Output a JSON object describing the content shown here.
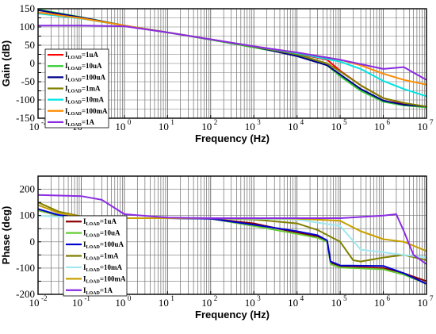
{
  "chart_data": [
    {
      "type": "line",
      "xlabel": "Frequency (Hz)",
      "ylabel": "Gain (dB)",
      "xscale": "log",
      "xlim": [
        0.01,
        10000000
      ],
      "ylim": [
        -150,
        150
      ],
      "x_ticks": [
        0.01,
        0.1,
        1,
        10,
        100,
        1000,
        10000,
        100000,
        1000000,
        10000000
      ],
      "x_tick_labels": [
        [
          "10",
          "-2"
        ],
        [
          "10",
          "-1"
        ],
        [
          "10",
          "0"
        ],
        [
          "10",
          "1"
        ],
        [
          "10",
          "2"
        ],
        [
          "10",
          "3"
        ],
        [
          "10",
          "4"
        ],
        [
          "10",
          "5"
        ],
        [
          "10",
          "6"
        ],
        [
          "10",
          "7"
        ]
      ],
      "y_ticks": [
        150,
        125,
        100,
        75,
        50,
        25,
        0,
        -25,
        -50,
        -75,
        -100,
        -125,
        -150
      ],
      "y_tick_labels": [
        "150",
        "",
        "100",
        "",
        "50",
        "",
        "0",
        "",
        "-50",
        "",
        "-100",
        "",
        "-150"
      ],
      "grid": true,
      "legend_position": "middle-left",
      "legend": [
        {
          "prefix": "I",
          "sub": "LOAD",
          "suffix": "=1uA",
          "color": "#ff0000"
        },
        {
          "prefix": "I",
          "sub": "LOAD",
          "suffix": "=10uA",
          "color": "#33cc33"
        },
        {
          "prefix": "I",
          "sub": "LOAD",
          "suffix": "=100uA",
          "color": "#00008b"
        },
        {
          "prefix": "I",
          "sub": "LOAD",
          "suffix": "=1mA",
          "color": "#808000"
        },
        {
          "prefix": "I",
          "sub": "LOAD",
          "suffix": "=10mA",
          "color": "#00e5e5"
        },
        {
          "prefix": "I",
          "sub": "LOAD",
          "suffix": "=100mA",
          "color": "#ff8c00"
        },
        {
          "prefix": "I",
          "sub": "LOAD",
          "suffix": "=1A",
          "color": "#8a2be2"
        }
      ],
      "series": [
        {
          "color": "#ff0000",
          "x": [
            0.01,
            0.1,
            1,
            10,
            100,
            1000,
            10000,
            50000,
            100000,
            300000,
            1000000,
            3000000,
            10000000
          ],
          "y": [
            140,
            125,
            104,
            85,
            66,
            46,
            27,
            10,
            -20,
            -60,
            -95,
            -110,
            -120
          ]
        },
        {
          "color": "#33cc33",
          "x": [
            0.01,
            0.1,
            1,
            10,
            100,
            1000,
            10000,
            50000,
            100000,
            300000,
            1000000,
            3000000,
            10000000
          ],
          "y": [
            148,
            127,
            104,
            85,
            65,
            44,
            22,
            -5,
            -35,
            -75,
            -105,
            -115,
            -120
          ]
        },
        {
          "color": "#00008b",
          "x": [
            0.01,
            0.1,
            1,
            10,
            100,
            1000,
            10000,
            50000,
            100000,
            300000,
            1000000,
            3000000,
            10000000
          ],
          "y": [
            146,
            126,
            104,
            85,
            66,
            46,
            20,
            -5,
            -30,
            -70,
            -102,
            -113,
            -118
          ]
        },
        {
          "color": "#808000",
          "x": [
            0.01,
            0.1,
            1,
            10,
            100,
            1000,
            10000,
            50000,
            100000,
            300000,
            1000000,
            3000000,
            10000000
          ],
          "y": [
            138,
            124,
            104,
            85,
            66,
            46,
            25,
            0,
            -22,
            -60,
            -95,
            -108,
            -118
          ]
        },
        {
          "color": "#00e5e5",
          "x": [
            0.01,
            0.1,
            1,
            10,
            100,
            1000,
            10000,
            100000,
            300000,
            1000000,
            3000000,
            10000000
          ],
          "y": [
            137,
            123,
            104,
            85,
            66,
            47,
            28,
            5,
            -15,
            -48,
            -70,
            -90
          ]
        },
        {
          "color": "#ff8c00",
          "x": [
            0.01,
            0.1,
            1,
            10,
            100,
            1000,
            10000,
            100000,
            300000,
            1000000,
            3000000,
            10000000
          ],
          "y": [
            140,
            124,
            104,
            85,
            66,
            47,
            30,
            10,
            -5,
            -28,
            -45,
            -58
          ]
        },
        {
          "color": "#8a2be2",
          "x": [
            0.01,
            0.1,
            1,
            10,
            100,
            1000,
            10000,
            100000,
            1000000,
            3000000,
            5000000,
            10000000
          ],
          "y": [
            104,
            104,
            102,
            85,
            66,
            47,
            30,
            10,
            -15,
            -10,
            -25,
            -45
          ]
        }
      ]
    },
    {
      "type": "line",
      "xlabel": "Frequency (Hz)",
      "ylabel": "Phase (deg)",
      "xscale": "log",
      "xlim": [
        0.01,
        10000000
      ],
      "ylim": [
        -200,
        250
      ],
      "x_ticks": [
        0.01,
        0.1,
        1,
        10,
        100,
        1000,
        10000,
        100000,
        1000000,
        10000000
      ],
      "x_tick_labels": [
        [
          "10",
          "-2"
        ],
        [
          "10",
          "-1"
        ],
        [
          "10",
          "0"
        ],
        [
          "10",
          "1"
        ],
        [
          "10",
          "2"
        ],
        [
          "10",
          "3"
        ],
        [
          "10",
          "4"
        ],
        [
          "10",
          "5"
        ],
        [
          "10",
          "6"
        ],
        [
          "10",
          "7"
        ]
      ],
      "y_ticks": [
        200,
        150,
        100,
        50,
        0,
        -50,
        -100,
        -150,
        -200
      ],
      "y_tick_labels": [
        "200",
        "",
        "100",
        "",
        "0",
        "",
        "-100",
        "",
        "-200"
      ],
      "grid": true,
      "legend_position": "lower-left",
      "legend": [
        {
          "prefix": "I",
          "sub": "LOAD",
          "suffix": "=1uA",
          "color": "#8b0000"
        },
        {
          "prefix": "I",
          "sub": "LOAD",
          "suffix": "=10uA",
          "color": "#66cc33"
        },
        {
          "prefix": "I",
          "sub": "LOAD",
          "suffix": "=100uA",
          "color": "#0000cd"
        },
        {
          "prefix": "I",
          "sub": "LOAD",
          "suffix": "=1mA",
          "color": "#808000"
        },
        {
          "prefix": "I",
          "sub": "LOAD",
          "suffix": "=10mA",
          "color": "#a0e8f0"
        },
        {
          "prefix": "I",
          "sub": "LOAD",
          "suffix": "=100mA",
          "color": "#c8a000"
        },
        {
          "prefix": "I",
          "sub": "LOAD",
          "suffix": "=1A",
          "color": "#8a2be2"
        }
      ],
      "series": [
        {
          "color": "#8b0000",
          "x": [
            0.01,
            0.03,
            0.1,
            0.3,
            1,
            10,
            100,
            1000,
            10000,
            30000,
            50000,
            60000,
            100000,
            1000000,
            3000000,
            10000000
          ],
          "y": [
            120,
            100,
            92,
            90,
            90,
            90,
            88,
            70,
            35,
            20,
            0,
            -80,
            -95,
            -100,
            -120,
            -150
          ]
        },
        {
          "color": "#66cc33",
          "x": [
            0.01,
            0.03,
            0.1,
            0.3,
            1,
            10,
            100,
            1000,
            10000,
            30000,
            50000,
            60000,
            100000,
            1000000,
            3000000,
            10000000
          ],
          "y": [
            120,
            100,
            92,
            90,
            90,
            90,
            88,
            60,
            30,
            15,
            0,
            -85,
            -98,
            -105,
            -125,
            -160
          ]
        },
        {
          "color": "#0000cd",
          "x": [
            0.01,
            0.03,
            0.1,
            0.3,
            1,
            10,
            100,
            1000,
            10000,
            30000,
            50000,
            60000,
            100000,
            1000000,
            3000000,
            10000000
          ],
          "y": [
            125,
            102,
            93,
            90,
            90,
            90,
            88,
            65,
            40,
            25,
            5,
            -75,
            -90,
            -92,
            -120,
            -160
          ]
        },
        {
          "color": "#808000",
          "x": [
            0.01,
            0.03,
            0.1,
            0.3,
            1,
            10,
            100,
            1000,
            10000,
            30000,
            100000,
            200000,
            300000,
            1000000,
            3000000,
            10000000
          ],
          "y": [
            150,
            115,
            97,
            91,
            90,
            90,
            90,
            85,
            70,
            45,
            0,
            -70,
            -75,
            -60,
            -50,
            -70
          ]
        },
        {
          "color": "#a0e8f0",
          "x": [
            0.01,
            0.03,
            0.1,
            0.3,
            1,
            10,
            100,
            1000,
            10000,
            100000,
            300000,
            1000000,
            3000000,
            10000000
          ],
          "y": [
            100,
            95,
            91,
            90,
            90,
            90,
            90,
            88,
            85,
            60,
            -30,
            -40,
            -50,
            -60
          ]
        },
        {
          "color": "#c8a000",
          "x": [
            0.01,
            0.03,
            0.1,
            0.3,
            1,
            10,
            100,
            1000,
            10000,
            100000,
            300000,
            1000000,
            3000000,
            10000000
          ],
          "y": [
            140,
            110,
            95,
            91,
            90,
            90,
            90,
            90,
            88,
            80,
            40,
            10,
            0,
            -35
          ]
        },
        {
          "color": "#8a2be2",
          "x": [
            0.01,
            0.1,
            0.3,
            1,
            10,
            100,
            1000,
            10000,
            100000,
            1000000,
            2000000,
            3000000,
            5000000,
            10000000
          ],
          "y": [
            178,
            174,
            160,
            105,
            92,
            90,
            90,
            90,
            90,
            100,
            105,
            40,
            -50,
            -85
          ]
        }
      ]
    }
  ]
}
